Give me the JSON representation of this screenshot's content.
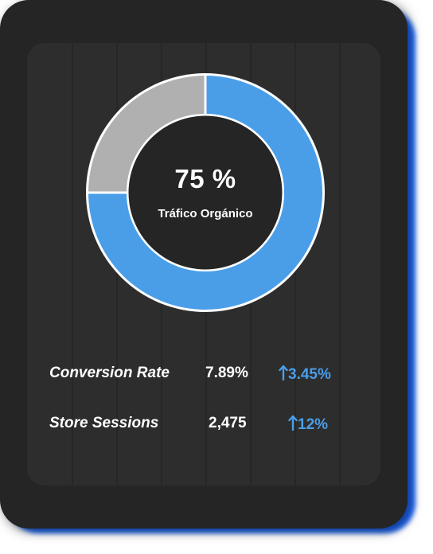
{
  "card": {
    "accent_color": "#4a9ee8",
    "remainder_color": "#b0b0b0",
    "background_color": "#252525"
  },
  "donut": {
    "percentage": 75,
    "value_text": "75 %",
    "label": "Tráfico Orgánico"
  },
  "metrics": [
    {
      "label": "Conversion Rate",
      "value": "7.89%",
      "change": "3.45%",
      "trend_icon": "arrow-up-icon"
    },
    {
      "label": "Store Sessions",
      "value": "2,475",
      "change": "12%",
      "trend_icon": "arrow-up-icon"
    }
  ]
}
